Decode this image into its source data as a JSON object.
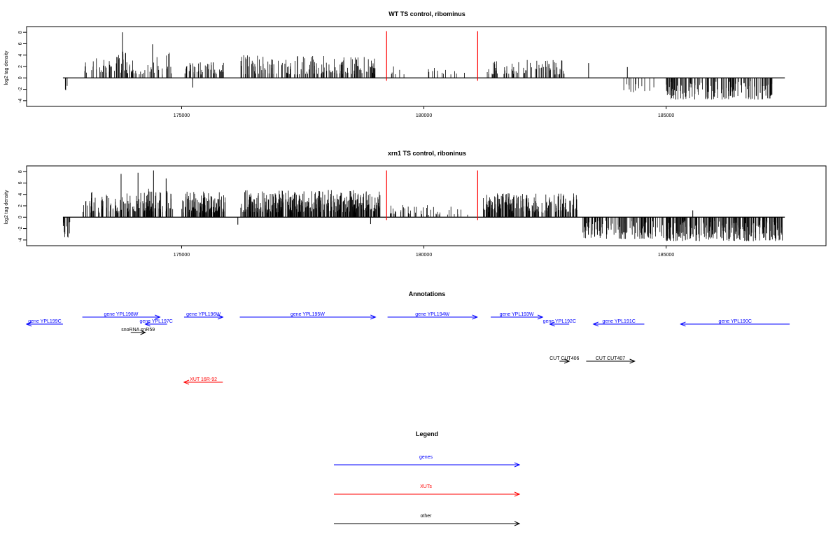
{
  "chart_data": [
    {
      "type": "bar",
      "title": "WT TS control, ribominus",
      "ylabel": "log2 tag density",
      "xlabel": "",
      "xlim": [
        171800,
        188300
      ],
      "ylim": [
        -5,
        9
      ],
      "xticks": [
        175000,
        180000,
        185000
      ],
      "yticks": [
        -4,
        -2,
        0,
        2,
        4,
        6,
        8
      ],
      "xtick_labels": [
        "175000",
        "180000",
        "185000"
      ],
      "ytick_labels": [
        "-4",
        "-2",
        "0",
        "2",
        "4",
        "6",
        "8"
      ],
      "baseline_range": [
        172550,
        187450
      ],
      "markers": [
        {
          "x": 179230,
          "ymin": -0.5,
          "ymax": 8.2,
          "color": "#ff0000"
        },
        {
          "x": 181110,
          "ymin": -0.5,
          "ymax": 8.2,
          "color": "#ff0000"
        }
      ],
      "regions": [
        {
          "start": 172580,
          "end": 172660,
          "min": -2.2,
          "max": -1.2,
          "n": 3,
          "seed": 11
        },
        {
          "start": 173000,
          "end": 174000,
          "min": 0.8,
          "max": 3.6,
          "n": 40,
          "seed": 12
        },
        {
          "start": 173650,
          "end": 173850,
          "min": 3.0,
          "max": 6.0,
          "n": 10,
          "seed": 13
        },
        {
          "start": 173900,
          "end": 174300,
          "min": 0.6,
          "max": 2.5,
          "n": 12,
          "seed": 14
        },
        {
          "start": 174300,
          "end": 174800,
          "min": 0.6,
          "max": 4.5,
          "n": 18,
          "seed": 15
        },
        {
          "start": 175050,
          "end": 175900,
          "min": 0.6,
          "max": 2.8,
          "n": 45,
          "seed": 16
        },
        {
          "start": 176200,
          "end": 179000,
          "min": 0.6,
          "max": 4.0,
          "n": 160,
          "seed": 17
        },
        {
          "start": 179300,
          "end": 179600,
          "min": 0.6,
          "max": 2.2,
          "n": 6,
          "seed": 18
        },
        {
          "start": 180050,
          "end": 181000,
          "min": 0.6,
          "max": 1.8,
          "n": 14,
          "seed": 19
        },
        {
          "start": 181250,
          "end": 182900,
          "min": 0.6,
          "max": 3.2,
          "n": 70,
          "seed": 20
        },
        {
          "start": 184100,
          "end": 184800,
          "min": -2.6,
          "max": -0.8,
          "n": 14,
          "seed": 21
        },
        {
          "start": 185000,
          "end": 187200,
          "min": -3.8,
          "max": -0.6,
          "n": 140,
          "seed": 22
        }
      ],
      "points": [
        {
          "x": 173780,
          "y": 8.0
        },
        {
          "x": 174400,
          "y": 5.9
        },
        {
          "x": 175230,
          "y": -1.7
        },
        {
          "x": 183400,
          "y": 2.6
        },
        {
          "x": 184200,
          "y": 1.9
        }
      ]
    },
    {
      "type": "bar",
      "title": "xrn1 TS control, riboninus",
      "ylabel": "log2 tag density",
      "xlabel": "",
      "xlim": [
        171800,
        188300
      ],
      "ylim": [
        -5,
        9
      ],
      "xticks": [
        175000,
        180000,
        185000
      ],
      "yticks": [
        -4,
        -2,
        0,
        2,
        4,
        6,
        8
      ],
      "xtick_labels": [
        "175000",
        "180000",
        "185000"
      ],
      "ytick_labels": [
        "-4",
        "-2",
        "0",
        "2",
        "4",
        "6",
        "8"
      ],
      "baseline_range": [
        172550,
        187450
      ],
      "markers": [
        {
          "x": 179230,
          "ymin": -0.5,
          "ymax": 8.2,
          "color": "#ff0000"
        },
        {
          "x": 181110,
          "ymin": -0.5,
          "ymax": 8.2,
          "color": "#ff0000"
        }
      ],
      "regions": [
        {
          "start": 172550,
          "end": 172700,
          "min": -3.6,
          "max": -0.8,
          "n": 12,
          "seed": 31
        },
        {
          "start": 172950,
          "end": 174300,
          "min": 0.8,
          "max": 4.5,
          "n": 90,
          "seed": 32
        },
        {
          "start": 174200,
          "end": 174850,
          "min": 0.8,
          "max": 5.0,
          "n": 55,
          "seed": 33
        },
        {
          "start": 175000,
          "end": 175900,
          "min": 0.8,
          "max": 4.5,
          "n": 120,
          "seed": 34
        },
        {
          "start": 176200,
          "end": 179100,
          "min": 0.8,
          "max": 4.8,
          "n": 400,
          "seed": 35
        },
        {
          "start": 179300,
          "end": 181000,
          "min": 0.4,
          "max": 2.2,
          "n": 45,
          "seed": 36
        },
        {
          "start": 181200,
          "end": 183200,
          "min": 0.8,
          "max": 4.2,
          "n": 200,
          "seed": 37
        },
        {
          "start": 183250,
          "end": 184950,
          "min": -3.8,
          "max": -0.6,
          "n": 120,
          "seed": 38
        },
        {
          "start": 185000,
          "end": 187400,
          "min": -4.2,
          "max": -0.6,
          "n": 240,
          "seed": 39
        }
      ],
      "points": [
        {
          "x": 173750,
          "y": 7.6
        },
        {
          "x": 174100,
          "y": 7.8
        },
        {
          "x": 174420,
          "y": 8.2
        },
        {
          "x": 174680,
          "y": 6.8
        },
        {
          "x": 176160,
          "y": -1.3
        },
        {
          "x": 178900,
          "y": -1.2
        },
        {
          "x": 185550,
          "y": 1.2
        }
      ]
    }
  ],
  "annotations": {
    "title": "Annotations",
    "features": [
      {
        "label": "gene YPL199C",
        "start": 171800,
        "end": 172550,
        "strand": "-",
        "color": "#0000ff",
        "row": 1
      },
      {
        "label": "gene YPL198W",
        "start": 172950,
        "end": 174550,
        "strand": "+",
        "color": "#0000ff",
        "row": 0
      },
      {
        "label": "gene YPL197C",
        "start": 174250,
        "end": 174700,
        "strand": "-",
        "color": "#0000ff",
        "row": 1
      },
      {
        "label": "snoRNA snR59",
        "start": 173950,
        "end": 174250,
        "strand": "+",
        "color": "#000000",
        "row": 2
      },
      {
        "label": "gene YPL196W",
        "start": 175050,
        "end": 175850,
        "strand": "+",
        "color": "#0000ff",
        "row": 0
      },
      {
        "label": "gene YPL195W",
        "start": 176200,
        "end": 179000,
        "strand": "+",
        "color": "#0000ff",
        "row": 0
      },
      {
        "label": "gene YPL194W",
        "start": 179250,
        "end": 181100,
        "strand": "+",
        "color": "#0000ff",
        "row": 0
      },
      {
        "label": "gene YPL193W",
        "start": 181380,
        "end": 182450,
        "strand": "+",
        "color": "#0000ff",
        "row": 0
      },
      {
        "label": "gene YPL192C",
        "start": 182600,
        "end": 183000,
        "strand": "-",
        "color": "#0000ff",
        "row": 1
      },
      {
        "label": "gene YPL191C",
        "start": 183500,
        "end": 184550,
        "strand": "-",
        "color": "#0000ff",
        "row": 1
      },
      {
        "label": "gene YPL190C",
        "start": 185300,
        "end": 187550,
        "strand": "-",
        "color": "#0000ff",
        "row": 1
      },
      {
        "label": "CUT CUT406",
        "start": 182800,
        "end": 183000,
        "strand": "+",
        "color": "#000000",
        "row": 3
      },
      {
        "label": "CUT CUT407",
        "start": 183350,
        "end": 184350,
        "strand": "+",
        "color": "#000000",
        "row": 3
      },
      {
        "label": "XUT 16R-92",
        "start": 175050,
        "end": 175850,
        "strand": "-",
        "color": "#ff0000",
        "row": 4
      }
    ]
  },
  "legend": {
    "title": "Legend",
    "items": [
      {
        "label": "genes",
        "color": "#0000ff"
      },
      {
        "label": "XUTs",
        "color": "#ff0000"
      },
      {
        "label": "other",
        "color": "#000000"
      }
    ]
  }
}
